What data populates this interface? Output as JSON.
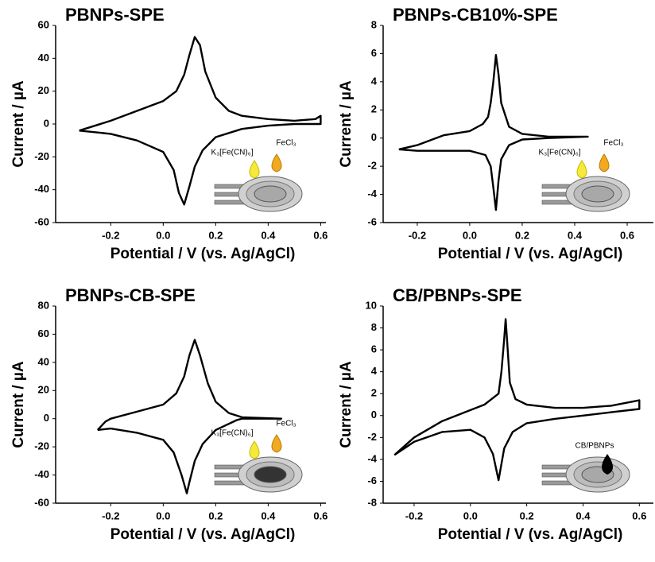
{
  "chart_data": [
    {
      "type": "line",
      "title": "PBNPs-SPE",
      "x_label": "Potential / V (vs. Ag/AgCl)",
      "y_label": "Current / µA",
      "xlim": [
        -0.41,
        0.62
      ],
      "ylim": [
        -60,
        60
      ],
      "xticks": [
        -0.2,
        {
          "value": 0,
          "label": "0.0"
        },
        0.2,
        0.4,
        0.6
      ],
      "yticks": [
        -60,
        -40,
        -20,
        0,
        20,
        40,
        60
      ],
      "series": [
        {
          "color": "#000000",
          "x": [
            -0.32,
            -0.2,
            -0.1,
            0.0,
            0.05,
            0.08,
            0.1,
            0.12,
            0.14,
            0.16,
            0.2,
            0.25,
            0.3,
            0.4,
            0.5,
            0.58,
            0.6,
            0.6,
            0.5,
            0.4,
            0.3,
            0.2,
            0.15,
            0.12,
            0.1,
            0.08,
            0.06,
            0.04,
            0.0,
            -0.1,
            -0.2,
            -0.32
          ],
          "values": [
            -4,
            2,
            8,
            14,
            20,
            30,
            42,
            53,
            48,
            32,
            16,
            8,
            5,
            3,
            2,
            3,
            5,
            0,
            0,
            -1,
            -3,
            -8,
            -16,
            -26,
            -38,
            -49,
            -42,
            -28,
            -17,
            -10,
            -6,
            -4
          ]
        }
      ],
      "annotations": [
        "K₃[Fe(CN)₆]",
        "FeCl₃"
      ]
    },
    {
      "type": "line",
      "title": "PBNPs-CB10%-SPE",
      "x_label": "Potential / V (vs. Ag/AgCl)",
      "y_label": "Current / µA",
      "xlim": [
        -0.33,
        0.7
      ],
      "ylim": [
        -6,
        8
      ],
      "xticks": [
        -0.2,
        {
          "value": 0,
          "label": "0.0"
        },
        0.2,
        0.4,
        0.6
      ],
      "yticks": [
        -6,
        -4,
        -2,
        0,
        2,
        4,
        6,
        8
      ],
      "series": [
        {
          "color": "#000000",
          "x": [
            -0.27,
            -0.2,
            -0.1,
            0.0,
            0.05,
            0.07,
            0.08,
            0.09,
            0.1,
            0.11,
            0.12,
            0.15,
            0.2,
            0.3,
            0.45,
            0.3,
            0.2,
            0.15,
            0.12,
            0.11,
            0.1,
            0.09,
            0.08,
            0.06,
            0.0,
            -0.1,
            -0.2,
            -0.27
          ],
          "values": [
            -0.8,
            -0.5,
            0.2,
            0.5,
            1.0,
            1.5,
            2.5,
            4,
            5.9,
            4.5,
            2.5,
            0.8,
            0.3,
            0.1,
            0.1,
            0,
            -0.1,
            -0.5,
            -1.5,
            -3,
            -5.1,
            -3.5,
            -2,
            -1.2,
            -0.9,
            -0.9,
            -0.9,
            -0.8
          ]
        }
      ],
      "annotations": [
        "K₃[Fe(CN)₆]",
        "FeCl₃"
      ]
    },
    {
      "type": "line",
      "title": "PBNPs-CB-SPE",
      "x_label": "Potential / V (vs. Ag/AgCl)",
      "y_label": "Current / µA",
      "xlim": [
        -0.41,
        0.62
      ],
      "ylim": [
        -60,
        80
      ],
      "xticks": [
        -0.2,
        {
          "value": 0,
          "label": "0.0"
        },
        0.2,
        0.4,
        0.6
      ],
      "yticks": [
        -60,
        -40,
        -20,
        0,
        20,
        40,
        60,
        80
      ],
      "series": [
        {
          "color": "#000000",
          "x": [
            -0.25,
            -0.22,
            -0.2,
            -0.1,
            0.0,
            0.05,
            0.08,
            0.1,
            0.12,
            0.14,
            0.17,
            0.2,
            0.25,
            0.3,
            0.45,
            0.3,
            0.28,
            0.2,
            0.15,
            0.12,
            0.1,
            0.09,
            0.07,
            0.04,
            0.0,
            -0.1,
            -0.2,
            -0.25
          ],
          "values": [
            -8,
            -2,
            0,
            5,
            10,
            18,
            30,
            45,
            56,
            45,
            25,
            12,
            4,
            1,
            0,
            0,
            -1,
            -8,
            -18,
            -30,
            -45,
            -53,
            -40,
            -24,
            -15,
            -10,
            -7,
            -8
          ]
        }
      ],
      "annotations": [
        "K₃[Fe(CN)₆]",
        "FeCl₃"
      ]
    },
    {
      "type": "line",
      "title": "CB/PBNPs-SPE",
      "x_label": "Potential / V (vs. Ag/AgCl)",
      "y_label": "Current / µA",
      "xlim": [
        -0.31,
        0.65
      ],
      "ylim": [
        -8,
        10
      ],
      "xticks": [
        -0.2,
        {
          "value": 0,
          "label": "0.0"
        },
        0.2,
        0.4,
        0.6
      ],
      "yticks": [
        -8,
        -6,
        -4,
        -2,
        0,
        2,
        4,
        6,
        8,
        10
      ],
      "series": [
        {
          "color": "#000000",
          "x": [
            -0.27,
            -0.2,
            -0.1,
            0.0,
            0.05,
            0.1,
            0.11,
            0.12,
            0.125,
            0.13,
            0.14,
            0.16,
            0.2,
            0.3,
            0.4,
            0.5,
            0.58,
            0.6,
            0.6,
            0.5,
            0.4,
            0.3,
            0.2,
            0.15,
            0.12,
            0.1,
            0.08,
            0.05,
            0.0,
            -0.1,
            -0.2,
            -0.27
          ],
          "values": [
            -3.6,
            -2,
            -0.5,
            0.5,
            1.0,
            2,
            4,
            7,
            8.8,
            7,
            3,
            1.5,
            1,
            0.7,
            0.7,
            0.9,
            1.3,
            1.4,
            0.6,
            0.3,
            0,
            -0.3,
            -0.7,
            -1.5,
            -3,
            -5.9,
            -3.5,
            -2,
            -1.3,
            -1.5,
            -2.4,
            -3.6
          ]
        }
      ],
      "annotations": [
        "CB/PBNPs"
      ]
    }
  ]
}
